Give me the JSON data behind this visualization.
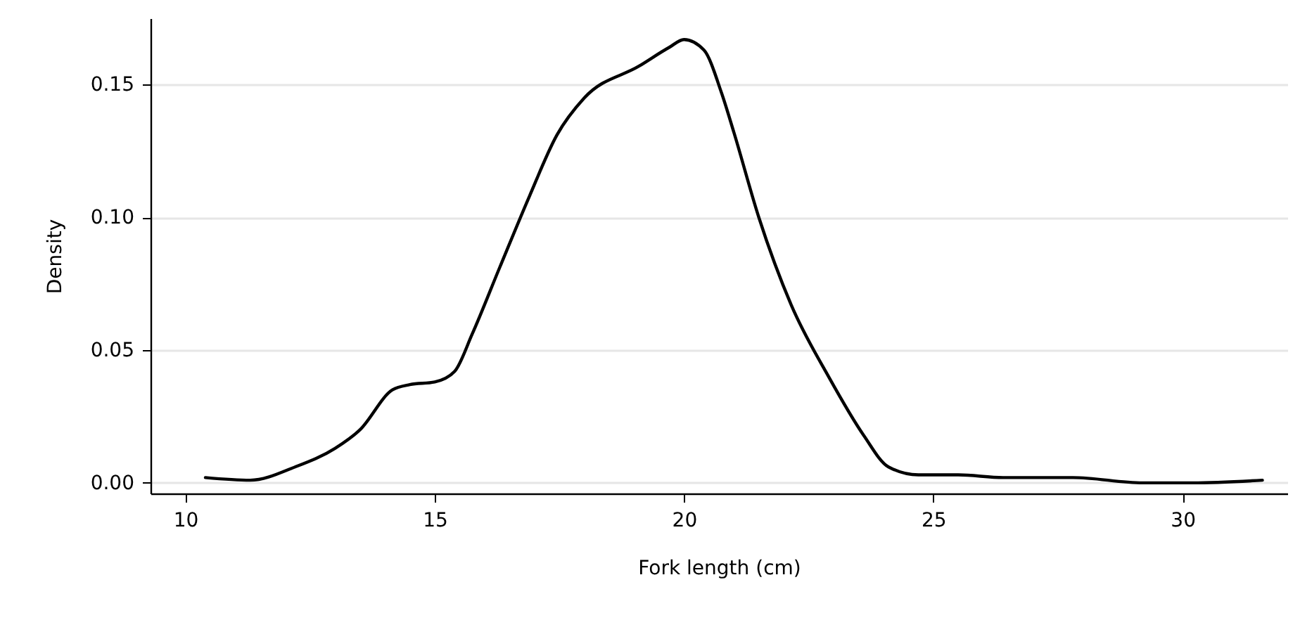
{
  "chart_data": {
    "type": "line",
    "xlabel": "Fork length (cm)",
    "ylabel": "Density",
    "x": [
      10.4,
      11.3,
      12.2,
      13.0,
      13.5,
      14.15,
      14.5,
      15.0,
      15.4,
      15.75,
      16.3,
      16.9,
      17.45,
      18.0,
      19.1,
      19.7,
      20.0,
      20.4,
      20.75,
      21.0,
      21.5,
      22.15,
      22.9,
      23.6,
      24.1,
      24.7,
      25.5,
      26.4,
      27.8,
      29.2,
      30.2,
      31.6
    ],
    "series": [
      {
        "color": "#000000",
        "values": [
          0.002,
          0.001,
          0.006,
          0.013,
          0.02,
          0.035,
          0.037,
          0.038,
          0.042,
          0.056,
          0.081,
          0.108,
          0.131,
          0.145,
          0.157,
          0.164,
          0.167,
          0.163,
          0.147,
          0.132,
          0.1,
          0.067,
          0.04,
          0.018,
          0.006,
          0.003,
          0.003,
          0.002,
          0.002,
          0.0,
          0.0,
          0.001
        ]
      }
    ],
    "xlim": [
      9.3,
      32.1
    ],
    "xticks": [
      10,
      15,
      20,
      25,
      30
    ],
    "ylim": [
      -0.004,
      0.175
    ],
    "yticks": [
      {
        "value": 0,
        "label": "0.00"
      },
      {
        "value": 0.05,
        "label": "0.05"
      },
      {
        "value": 0.1,
        "label": "0.10"
      },
      {
        "value": 0.15,
        "label": "0.15"
      }
    ],
    "grid": "y",
    "line_style": "solid",
    "marker": "none"
  }
}
